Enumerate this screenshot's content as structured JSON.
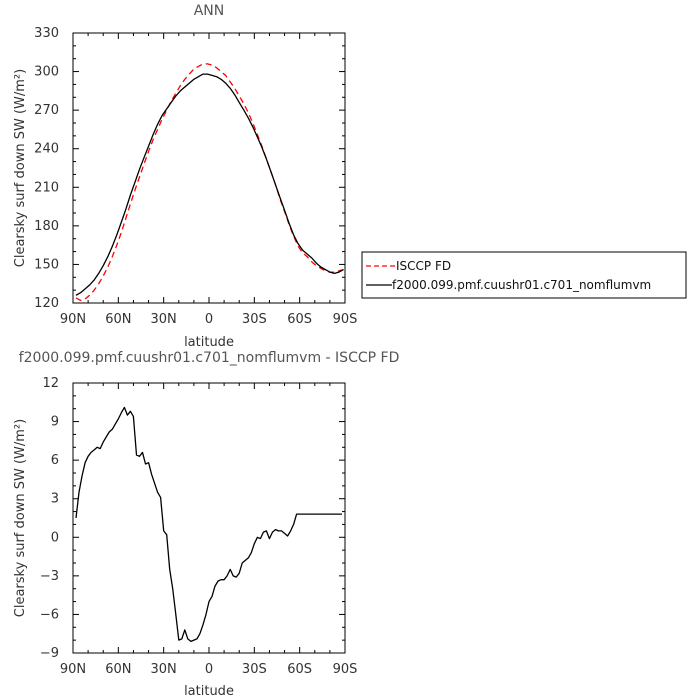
{
  "chart_data": [
    {
      "type": "line",
      "title": "ANN",
      "xlabel": "latitude",
      "ylabel": "Clearsky surf down SW (W/m²)",
      "xlim": [
        90,
        -90
      ],
      "ylim": [
        120,
        330
      ],
      "x_ticks": [
        {
          "value": 90,
          "label": "90N"
        },
        {
          "value": 60,
          "label": "60N"
        },
        {
          "value": 30,
          "label": "30N"
        },
        {
          "value": 0,
          "label": "0"
        },
        {
          "value": -30,
          "label": "30S"
        },
        {
          "value": -60,
          "label": "60S"
        },
        {
          "value": -90,
          "label": "90S"
        }
      ],
      "y_ticks": [
        120,
        150,
        180,
        210,
        240,
        270,
        300,
        330
      ],
      "legend_position": "right",
      "series": [
        {
          "name": "ISCCP FD",
          "color": "#ff0000",
          "dash": true,
          "x": [
            88,
            85,
            82,
            79,
            76,
            73,
            70,
            67,
            64,
            61,
            58,
            55,
            52,
            49,
            46,
            43,
            40,
            37,
            34,
            31,
            28,
            25,
            22,
            19,
            16,
            13,
            10,
            7,
            4,
            1,
            -2,
            -5,
            -8,
            -11,
            -14,
            -17,
            -20,
            -23,
            -26,
            -29,
            -32,
            -35,
            -38,
            -41,
            -44,
            -47,
            -50,
            -53,
            -56,
            -59,
            -62,
            -65,
            -68,
            -71,
            -74,
            -77,
            -80,
            -83,
            -86,
            -89
          ],
          "values": [
            124,
            122,
            123,
            126,
            130,
            135,
            141,
            148,
            156,
            165,
            175,
            186,
            197,
            208,
            218,
            228,
            238,
            247,
            255,
            263,
            270,
            277,
            283,
            289,
            294,
            298,
            302,
            304,
            306,
            306,
            305,
            303,
            300,
            297,
            292,
            287,
            281,
            275,
            268,
            260,
            251,
            242,
            232,
            222,
            212,
            201,
            191,
            181,
            172,
            164,
            159,
            156,
            152,
            149,
            147,
            145,
            144,
            144,
            145,
            146
          ]
        },
        {
          "name": "f2000.099.pmf.cuushr01.c701_nomflumvm",
          "color": "#000000",
          "dash": false,
          "x": [
            88,
            85,
            82,
            79,
            76,
            73,
            70,
            67,
            64,
            61,
            58,
            55,
            52,
            49,
            46,
            43,
            40,
            37,
            34,
            31,
            28,
            25,
            22,
            19,
            16,
            13,
            10,
            7,
            4,
            1,
            -2,
            -5,
            -8,
            -11,
            -14,
            -17,
            -20,
            -23,
            -26,
            -29,
            -32,
            -35,
            -38,
            -41,
            -44,
            -47,
            -50,
            -53,
            -56,
            -59,
            -62,
            -65,
            -68,
            -71,
            -74,
            -77,
            -80,
            -83,
            -86,
            -89
          ],
          "values": [
            126,
            128,
            131,
            134,
            138,
            143,
            149,
            156,
            164,
            173,
            183,
            193,
            204,
            214,
            224,
            233,
            242,
            251,
            259,
            266,
            271,
            276,
            281,
            285,
            288,
            291,
            294,
            296,
            298,
            298,
            297,
            296,
            294,
            291,
            287,
            282,
            276,
            270,
            264,
            257,
            249,
            241,
            232,
            222,
            212,
            202,
            192,
            182,
            173,
            166,
            161,
            158,
            155,
            151,
            148,
            146,
            144,
            143,
            144,
            146
          ]
        }
      ]
    },
    {
      "type": "line",
      "title": "f2000.099.pmf.cuushr01.c701_nomflumvm - ISCCP FD",
      "xlabel": "latitude",
      "ylabel": "Clearsky surf down SW (W/m²)",
      "xlim": [
        90,
        -90
      ],
      "ylim": [
        -9,
        12
      ],
      "x_ticks": [
        {
          "value": 90,
          "label": "90N"
        },
        {
          "value": 60,
          "label": "60N"
        },
        {
          "value": 30,
          "label": "30N"
        },
        {
          "value": 0,
          "label": "0"
        },
        {
          "value": -30,
          "label": "30S"
        },
        {
          "value": -60,
          "label": "60S"
        },
        {
          "value": -90,
          "label": "90S"
        }
      ],
      "y_ticks": [
        -9,
        -6,
        -3,
        0,
        3,
        6,
        9,
        12
      ],
      "series": [
        {
          "color": "#000000",
          "dash": false,
          "x": [
            88,
            86,
            84,
            82,
            80,
            78,
            76,
            74,
            72,
            70,
            68,
            66,
            64,
            62,
            60,
            58,
            56,
            54,
            52,
            50,
            48,
            46,
            44,
            42,
            40,
            38,
            36,
            34,
            32,
            30,
            28,
            26,
            24,
            22,
            20,
            18,
            16,
            14,
            12,
            10,
            8,
            6,
            4,
            2,
            0,
            -2,
            -4,
            -6,
            -8,
            -10,
            -12,
            -14,
            -16,
            -18,
            -20,
            -22,
            -24,
            -26,
            -28,
            -30,
            -32,
            -34,
            -36,
            -38,
            -40,
            -42,
            -44,
            -46,
            -48,
            -50,
            -52,
            -54,
            -56,
            -58,
            -60,
            -62,
            -64,
            -66,
            -68,
            -70,
            -72,
            -74,
            -76,
            -78,
            -80,
            -82,
            -84,
            -86,
            -88
          ],
          "values": [
            1.5,
            3.5,
            4.8,
            5.8,
            6.3,
            6.6,
            6.8,
            7.0,
            6.9,
            7.4,
            7.8,
            8.2,
            8.4,
            8.8,
            9.2,
            9.7,
            10.1,
            9.5,
            9.8,
            9.4,
            6.4,
            6.3,
            6.6,
            5.7,
            5.8,
            4.9,
            4.2,
            3.5,
            3.1,
            0.5,
            0.2,
            -2.5,
            -4.0,
            -6.0,
            -8.0,
            -7.9,
            -7.2,
            -7.9,
            -8.1,
            -8.0,
            -7.9,
            -7.5,
            -6.8,
            -6.0,
            -5.0,
            -4.6,
            -3.8,
            -3.4,
            -3.3,
            -3.3,
            -3.0,
            -2.5,
            -3.0,
            -3.1,
            -2.8,
            -2.0,
            -1.8,
            -1.6,
            -1.2,
            -0.5,
            0.0,
            -0.1,
            0.4,
            0.5,
            -0.1,
            0.4,
            0.6,
            0.5,
            0.5,
            0.3,
            0.1,
            0.5,
            1.0,
            1.8,
            1.8,
            1.8,
            1.8,
            1.8,
            1.8,
            1.8,
            1.8,
            1.8,
            1.8,
            1.8,
            1.8,
            1.8,
            1.8,
            1.8,
            1.8
          ]
        }
      ]
    }
  ]
}
